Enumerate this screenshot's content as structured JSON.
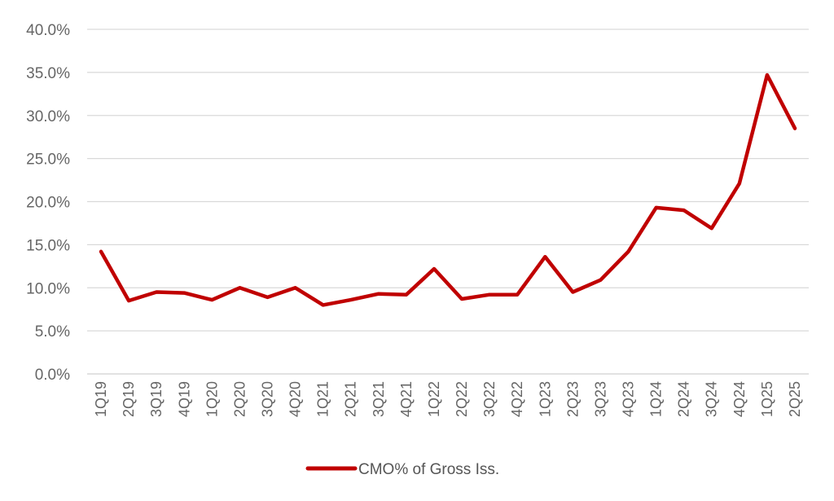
{
  "chart_data": {
    "type": "line",
    "title": "",
    "xlabel": "",
    "ylabel": "",
    "ylim": [
      0,
      40
    ],
    "y_tick_format": "percent_one_decimal",
    "y_ticks": [
      "0.0%",
      "5.0%",
      "10.0%",
      "15.0%",
      "20.0%",
      "25.0%",
      "30.0%",
      "35.0%",
      "40.0%"
    ],
    "y_tick_values": [
      0,
      5,
      10,
      15,
      20,
      25,
      30,
      35,
      40
    ],
    "grid": "horizontal",
    "legend_position": "bottom",
    "categories": [
      "1Q19",
      "2Q19",
      "3Q19",
      "4Q19",
      "1Q20",
      "2Q20",
      "3Q20",
      "4Q20",
      "1Q21",
      "2Q21",
      "3Q21",
      "4Q21",
      "1Q22",
      "2Q22",
      "3Q22",
      "4Q22",
      "1Q23",
      "2Q23",
      "3Q23",
      "4Q23",
      "1Q24",
      "2Q24",
      "3Q24",
      "4Q24",
      "1Q25",
      "2Q25"
    ],
    "series": [
      {
        "name": "CMO% of Gross Iss.",
        "color": "#c00000",
        "values": [
          14.2,
          8.5,
          9.5,
          9.4,
          8.6,
          10.0,
          8.9,
          10.0,
          8.0,
          8.6,
          9.3,
          9.2,
          12.2,
          8.7,
          9.2,
          9.2,
          13.6,
          9.5,
          10.9,
          14.2,
          19.3,
          19.0,
          16.9,
          22.1,
          34.7,
          28.5
        ]
      }
    ]
  }
}
